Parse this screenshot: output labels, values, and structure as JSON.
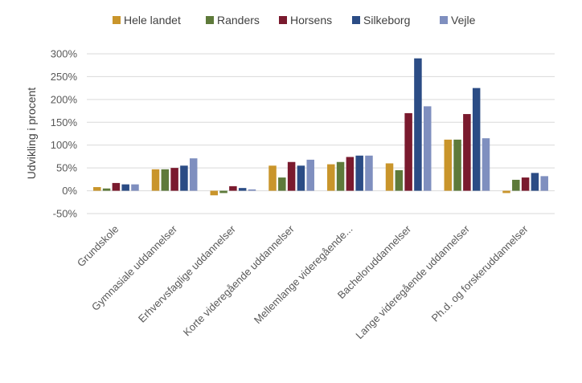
{
  "chart_data": {
    "type": "bar",
    "title": "",
    "xlabel": "",
    "ylabel": "Udvikling i procent",
    "ylim": [
      -50,
      300
    ],
    "yticks": [
      -50,
      0,
      50,
      100,
      150,
      200,
      250,
      300
    ],
    "ytick_labels": [
      "-50%",
      "0%",
      "50%",
      "100%",
      "150%",
      "200%",
      "250%",
      "300%"
    ],
    "grid": true,
    "legend_position": "top",
    "categories": [
      "Grundskole",
      "Gymnasiale uddannelser",
      "Erhvervsfaglige uddannelser",
      "Korte videregående uddannelser",
      "Mellemlange videregående...",
      "Bacheloruddannelser",
      "Lange videregående uddannelser",
      "Ph.d. og forskeruddannelser"
    ],
    "series": [
      {
        "name": "Hele landet",
        "color": "#C9952B",
        "values": [
          8,
          47,
          -10,
          55,
          58,
          60,
          112,
          -5
        ]
      },
      {
        "name": "Randers",
        "color": "#5E7A3A",
        "values": [
          5,
          47,
          -5,
          29,
          63,
          45,
          112,
          24
        ]
      },
      {
        "name": "Horsens",
        "color": "#7A1A2E",
        "values": [
          17,
          50,
          10,
          63,
          74,
          170,
          168,
          29
        ]
      },
      {
        "name": "Silkeborg",
        "color": "#2B4C85",
        "values": [
          14,
          55,
          6,
          55,
          77,
          290,
          225,
          39
        ]
      },
      {
        "name": "Vejle",
        "color": "#7F8FBF",
        "values": [
          14,
          71,
          3,
          68,
          77,
          185,
          115,
          32
        ]
      }
    ]
  }
}
